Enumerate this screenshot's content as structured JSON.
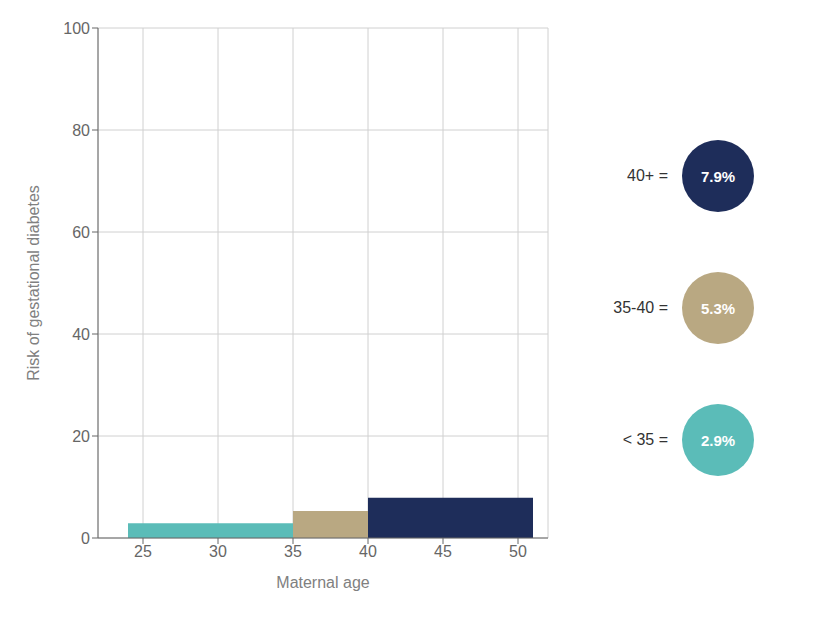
{
  "chart_data": {
    "type": "histogram",
    "xlabel": "Maternal age",
    "ylabel": "Risk of gestational diabetes",
    "xlim": [
      22,
      52
    ],
    "ylim": [
      0,
      100
    ],
    "xticks": [
      25,
      30,
      35,
      40,
      45,
      50
    ],
    "yticks": [
      0,
      20,
      40,
      60,
      80,
      100
    ],
    "bins": [
      24,
      35,
      40,
      51
    ],
    "values": [
      2.9,
      5.3,
      7.9
    ],
    "value_labels": [
      "2.9%",
      "5.3%",
      "7.9%"
    ],
    "categories": [
      "< 35 =",
      "35-40 =",
      "40+ ="
    ],
    "colors": [
      "#5bbcb8",
      "#b9a882",
      "#1e2d5a"
    ],
    "grid": true,
    "legend": "right"
  }
}
